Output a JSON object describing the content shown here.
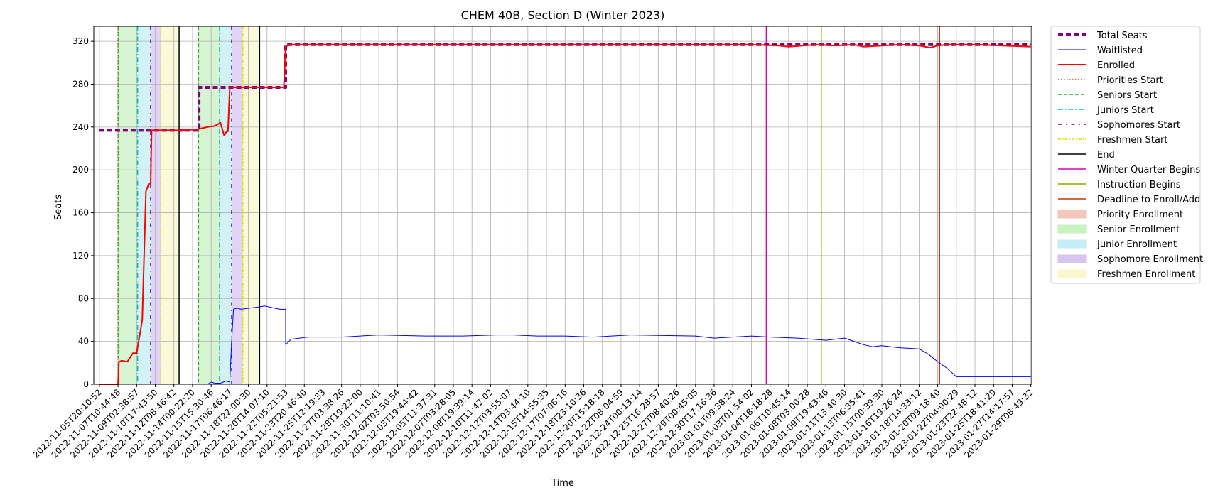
{
  "chart_data": {
    "type": "line",
    "title": "CHEM 40B, Section D (Winter 2023)",
    "xlabel": "Time",
    "ylabel": "Seats",
    "ylim": [
      0,
      334
    ],
    "yticks": [
      0,
      40,
      80,
      120,
      160,
      200,
      240,
      280,
      320
    ],
    "grid": true,
    "legend_position": "outside-right",
    "xtick_labels": [
      "2022-11-05T20:10:52",
      "2022-11-07T10:44:48",
      "2022-11-09T02:38:57",
      "2022-11-10T17:43:50",
      "2022-11-12T08:46:42",
      "2022-11-14T00:22:20",
      "2022-11-15T15:30:46",
      "2022-11-17T06:46:17",
      "2022-11-18T22:00:30",
      "2022-11-20T14:07:10",
      "2022-11-22T05:21:53",
      "2022-11-23T20:46:40",
      "2022-11-25T12:19:33",
      "2022-11-27T03:38:26",
      "2022-11-28T19:22:00",
      "2022-11-30T11:10:41",
      "2022-12-02T03:50:54",
      "2022-12-03T19:44:42",
      "2022-12-05T11:37:31",
      "2022-12-07T03:28:05",
      "2022-12-08T19:39:14",
      "2022-12-10T11:42:02",
      "2022-12-12T03:55:07",
      "2022-12-14T03:44:10",
      "2022-12-15T14:55:35",
      "2022-12-17T07:06:16",
      "2022-12-18T23:10:36",
      "2022-12-20T15:18:18",
      "2022-12-22T08:04:59",
      "2022-12-24T00:13:14",
      "2022-12-25T16:28:57",
      "2022-12-27T08:40:26",
      "2022-12-29T00:45:05",
      "2022-12-30T17:16:36",
      "2023-01-01T09:38:24",
      "2023-01-03T01:54:02",
      "2023-01-04T18:18:28",
      "2023-01-06T10:45:14",
      "2023-01-08T03:00:28",
      "2023-01-09T19:43:46",
      "2023-01-11T13:40:30",
      "2023-01-13T06:35:41",
      "2023-01-15T00:39:30",
      "2023-01-16T19:26:24",
      "2023-01-18T14:33:12",
      "2023-01-20T09:18:40",
      "2023-01-22T04:00:29",
      "2023-01-23T22:48:12",
      "2023-01-25T18:41:29",
      "2023-01-27T14:17:57",
      "2023-01-29T08:49:32"
    ],
    "legend": [
      {
        "label": "Total Seats",
        "kind": "line",
        "color": "#800080",
        "dash": "7,4",
        "width": 4
      },
      {
        "label": "Waitlisted",
        "kind": "line",
        "color": "#0000ff",
        "dash": "",
        "width": 1
      },
      {
        "label": "Enrolled",
        "kind": "line",
        "color": "#ff0000",
        "dash": "",
        "width": 2
      },
      {
        "label": "Priorities Start",
        "kind": "line",
        "color": "#ff3300",
        "dash": "1.5,2.5",
        "width": 1.5
      },
      {
        "label": "Seniors Start",
        "kind": "line",
        "color": "#22bb22",
        "dash": "5,3",
        "width": 1.5
      },
      {
        "label": "Juniors Start",
        "kind": "line",
        "color": "#00bbbb",
        "dash": "7,3,1.5,3",
        "width": 1.5
      },
      {
        "label": "Sophomores Start",
        "kind": "line",
        "color": "#5500cc",
        "dash": "5,6,1.5,6",
        "width": 1.5
      },
      {
        "label": "Freshmen Start",
        "kind": "line",
        "color": "#dddd00",
        "dash": "4,2,1.5,2",
        "width": 1.5
      },
      {
        "label": "End",
        "kind": "line",
        "color": "#000000",
        "dash": "",
        "width": 1.5
      },
      {
        "label": "Winter Quarter Begins",
        "kind": "line",
        "color": "#dd00aa",
        "dash": "",
        "width": 1.5
      },
      {
        "label": "Instruction Begins",
        "kind": "line",
        "color": "#88aa00",
        "dash": "",
        "width": 1.5
      },
      {
        "label": "Deadline to Enroll/Add",
        "kind": "line",
        "color": "#cc3300",
        "dash": "",
        "width": 1.5
      },
      {
        "label": "Priority Enrollment",
        "kind": "patch",
        "color": "#f4c7b8"
      },
      {
        "label": "Senior Enrollment",
        "kind": "patch",
        "color": "#c9f2c3"
      },
      {
        "label": "Junior Enrollment",
        "kind": "patch",
        "color": "#c4eef3"
      },
      {
        "label": "Sophomore Enrollment",
        "kind": "patch",
        "color": "#d8c6f1"
      },
      {
        "label": "Freshmen Enrollment",
        "kind": "patch",
        "color": "#f8f8cc"
      }
    ],
    "shaded_regions": [
      {
        "label": "Senior Enrollment",
        "x": [
          1.0,
          2.05
        ],
        "color": "#c9f2c3"
      },
      {
        "label": "Junior Enrollment",
        "x": [
          2.05,
          2.75
        ],
        "color": "#c4eef3"
      },
      {
        "label": "Sophomore Enrollment",
        "x": [
          2.75,
          3.3
        ],
        "color": "#d8c6f1"
      },
      {
        "label": "Freshmen Enrollment",
        "x": [
          3.3,
          4.28
        ],
        "color": "#f8f8cc"
      },
      {
        "label": "Senior Enrollment",
        "x": [
          5.3,
          6.45
        ],
        "color": "#c9f2c3"
      },
      {
        "label": "Junior Enrollment",
        "x": [
          6.45,
          7.1
        ],
        "color": "#c4eef3"
      },
      {
        "label": "Sophomore Enrollment",
        "x": [
          7.1,
          7.7
        ],
        "color": "#d8c6f1"
      },
      {
        "label": "Freshmen Enrollment",
        "x": [
          7.7,
          8.6
        ],
        "color": "#f8f8cc"
      }
    ],
    "vlines": [
      {
        "label": "Priorities Start",
        "x": 1.0
      },
      {
        "label": "Seniors Start",
        "x": 1.02
      },
      {
        "label": "Juniors Start",
        "x": 2.05
      },
      {
        "label": "Sophomores Start",
        "x": 2.75
      },
      {
        "label": "Freshmen Start",
        "x": 3.3
      },
      {
        "label": "End",
        "x": 4.28
      },
      {
        "label": "Priorities Start",
        "x": 5.3
      },
      {
        "label": "Seniors Start",
        "x": 5.32
      },
      {
        "label": "Juniors Start",
        "x": 6.45
      },
      {
        "label": "Sophomores Start",
        "x": 7.1
      },
      {
        "label": "Freshmen Start",
        "x": 7.7
      },
      {
        "label": "End",
        "x": 8.6
      },
      {
        "label": "Winter Quarter Begins",
        "x": 35.8
      },
      {
        "label": "Instruction Begins",
        "x": 38.75
      },
      {
        "label": "Deadline to Enroll/Add",
        "x": 45.1
      }
    ],
    "series": [
      {
        "name": "Total Seats",
        "x": [
          0,
          5.35,
          5.35,
          10.0,
          10.0,
          50.0
        ],
        "y": [
          237,
          237,
          277,
          277,
          317,
          317
        ]
      },
      {
        "name": "Enrolled",
        "x": [
          0,
          1.0,
          1.05,
          1.2,
          1.5,
          1.8,
          2.0,
          2.3,
          2.5,
          2.65,
          2.75,
          2.8,
          3.3,
          4.3,
          5.3,
          5.8,
          6.2,
          6.5,
          6.7,
          6.8,
          6.9,
          7.0,
          7.05,
          8.6,
          9.9,
          10.0,
          10.2,
          35.0,
          36.5,
          37.0,
          38.5,
          39.5,
          40.5,
          41.0,
          42.0,
          43.0,
          44.0,
          44.6,
          45.0,
          45.5,
          47.0,
          48.5,
          50.0
        ],
        "y": [
          0,
          0,
          21,
          22,
          21,
          29,
          29,
          60,
          180,
          187,
          187,
          237,
          237,
          237,
          238,
          240,
          241,
          244,
          232,
          235,
          236,
          277,
          277,
          277,
          277,
          315,
          317,
          317,
          316,
          315,
          317,
          316,
          317,
          315,
          316,
          317,
          316,
          314,
          316,
          317,
          317,
          316,
          315
        ]
      },
      {
        "name": "Waitlisted",
        "x": [
          0,
          5.8,
          6.0,
          6.2,
          6.5,
          6.8,
          7.0,
          7.1,
          7.2,
          7.4,
          7.6,
          8.5,
          8.9,
          9.4,
          9.7,
          10.0,
          10.0,
          10.3,
          11.2,
          13.0,
          14.0,
          15.0,
          17.5,
          19.5,
          21.3,
          22.2,
          23.5,
          25.0,
          26.5,
          28.5,
          32.0,
          33.0,
          35.0,
          36.0,
          37.5,
          39.0,
          39.5,
          40.0,
          40.5,
          41.0,
          41.5,
          42.0,
          43.0,
          44.0,
          44.5,
          45.0,
          45.5,
          46.0,
          50.0
        ],
        "y": [
          0,
          0,
          2,
          1,
          1,
          3,
          2,
          40,
          70,
          71,
          70,
          72,
          73,
          71,
          70,
          70,
          37,
          42,
          44,
          44,
          45,
          46,
          45,
          45,
          46,
          46,
          45,
          45,
          44,
          46,
          45,
          43,
          45,
          44,
          43,
          41,
          42,
          43,
          40,
          37,
          35,
          36,
          34,
          33,
          28,
          21,
          15,
          7,
          7
        ]
      }
    ]
  }
}
